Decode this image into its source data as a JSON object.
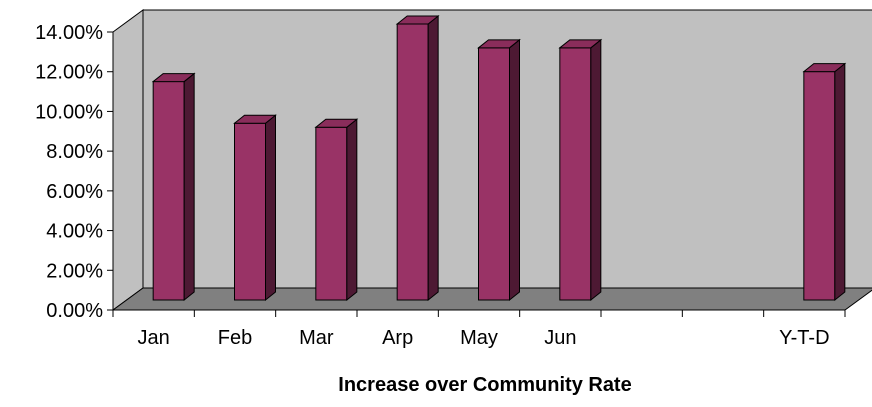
{
  "chart_data": {
    "type": "bar",
    "style": "3d-column",
    "title": "Increase over Community Rate",
    "xlabel": "Increase over Community Rate",
    "ylabel": "",
    "categories": [
      "Jan",
      "Feb",
      "Mar",
      "Arp",
      "May",
      "Jun",
      "",
      "",
      "Y-T-D"
    ],
    "values": [
      0.11,
      0.089,
      0.087,
      0.139,
      0.127,
      0.127,
      null,
      null,
      0.115
    ],
    "ylim": [
      0,
      0.14
    ],
    "yticks": [
      "0.00%",
      "2.00%",
      "4.00%",
      "6.00%",
      "8.00%",
      "10.00%",
      "12.00%",
      "14.00%"
    ],
    "grid": false,
    "legend": "none",
    "colors": {
      "bar_front": "#993366",
      "bar_top": "#8a2d5b",
      "bar_side": "#4d1933",
      "wall": "#c0c0c0",
      "floor": "#808080",
      "text": "#000000"
    }
  }
}
